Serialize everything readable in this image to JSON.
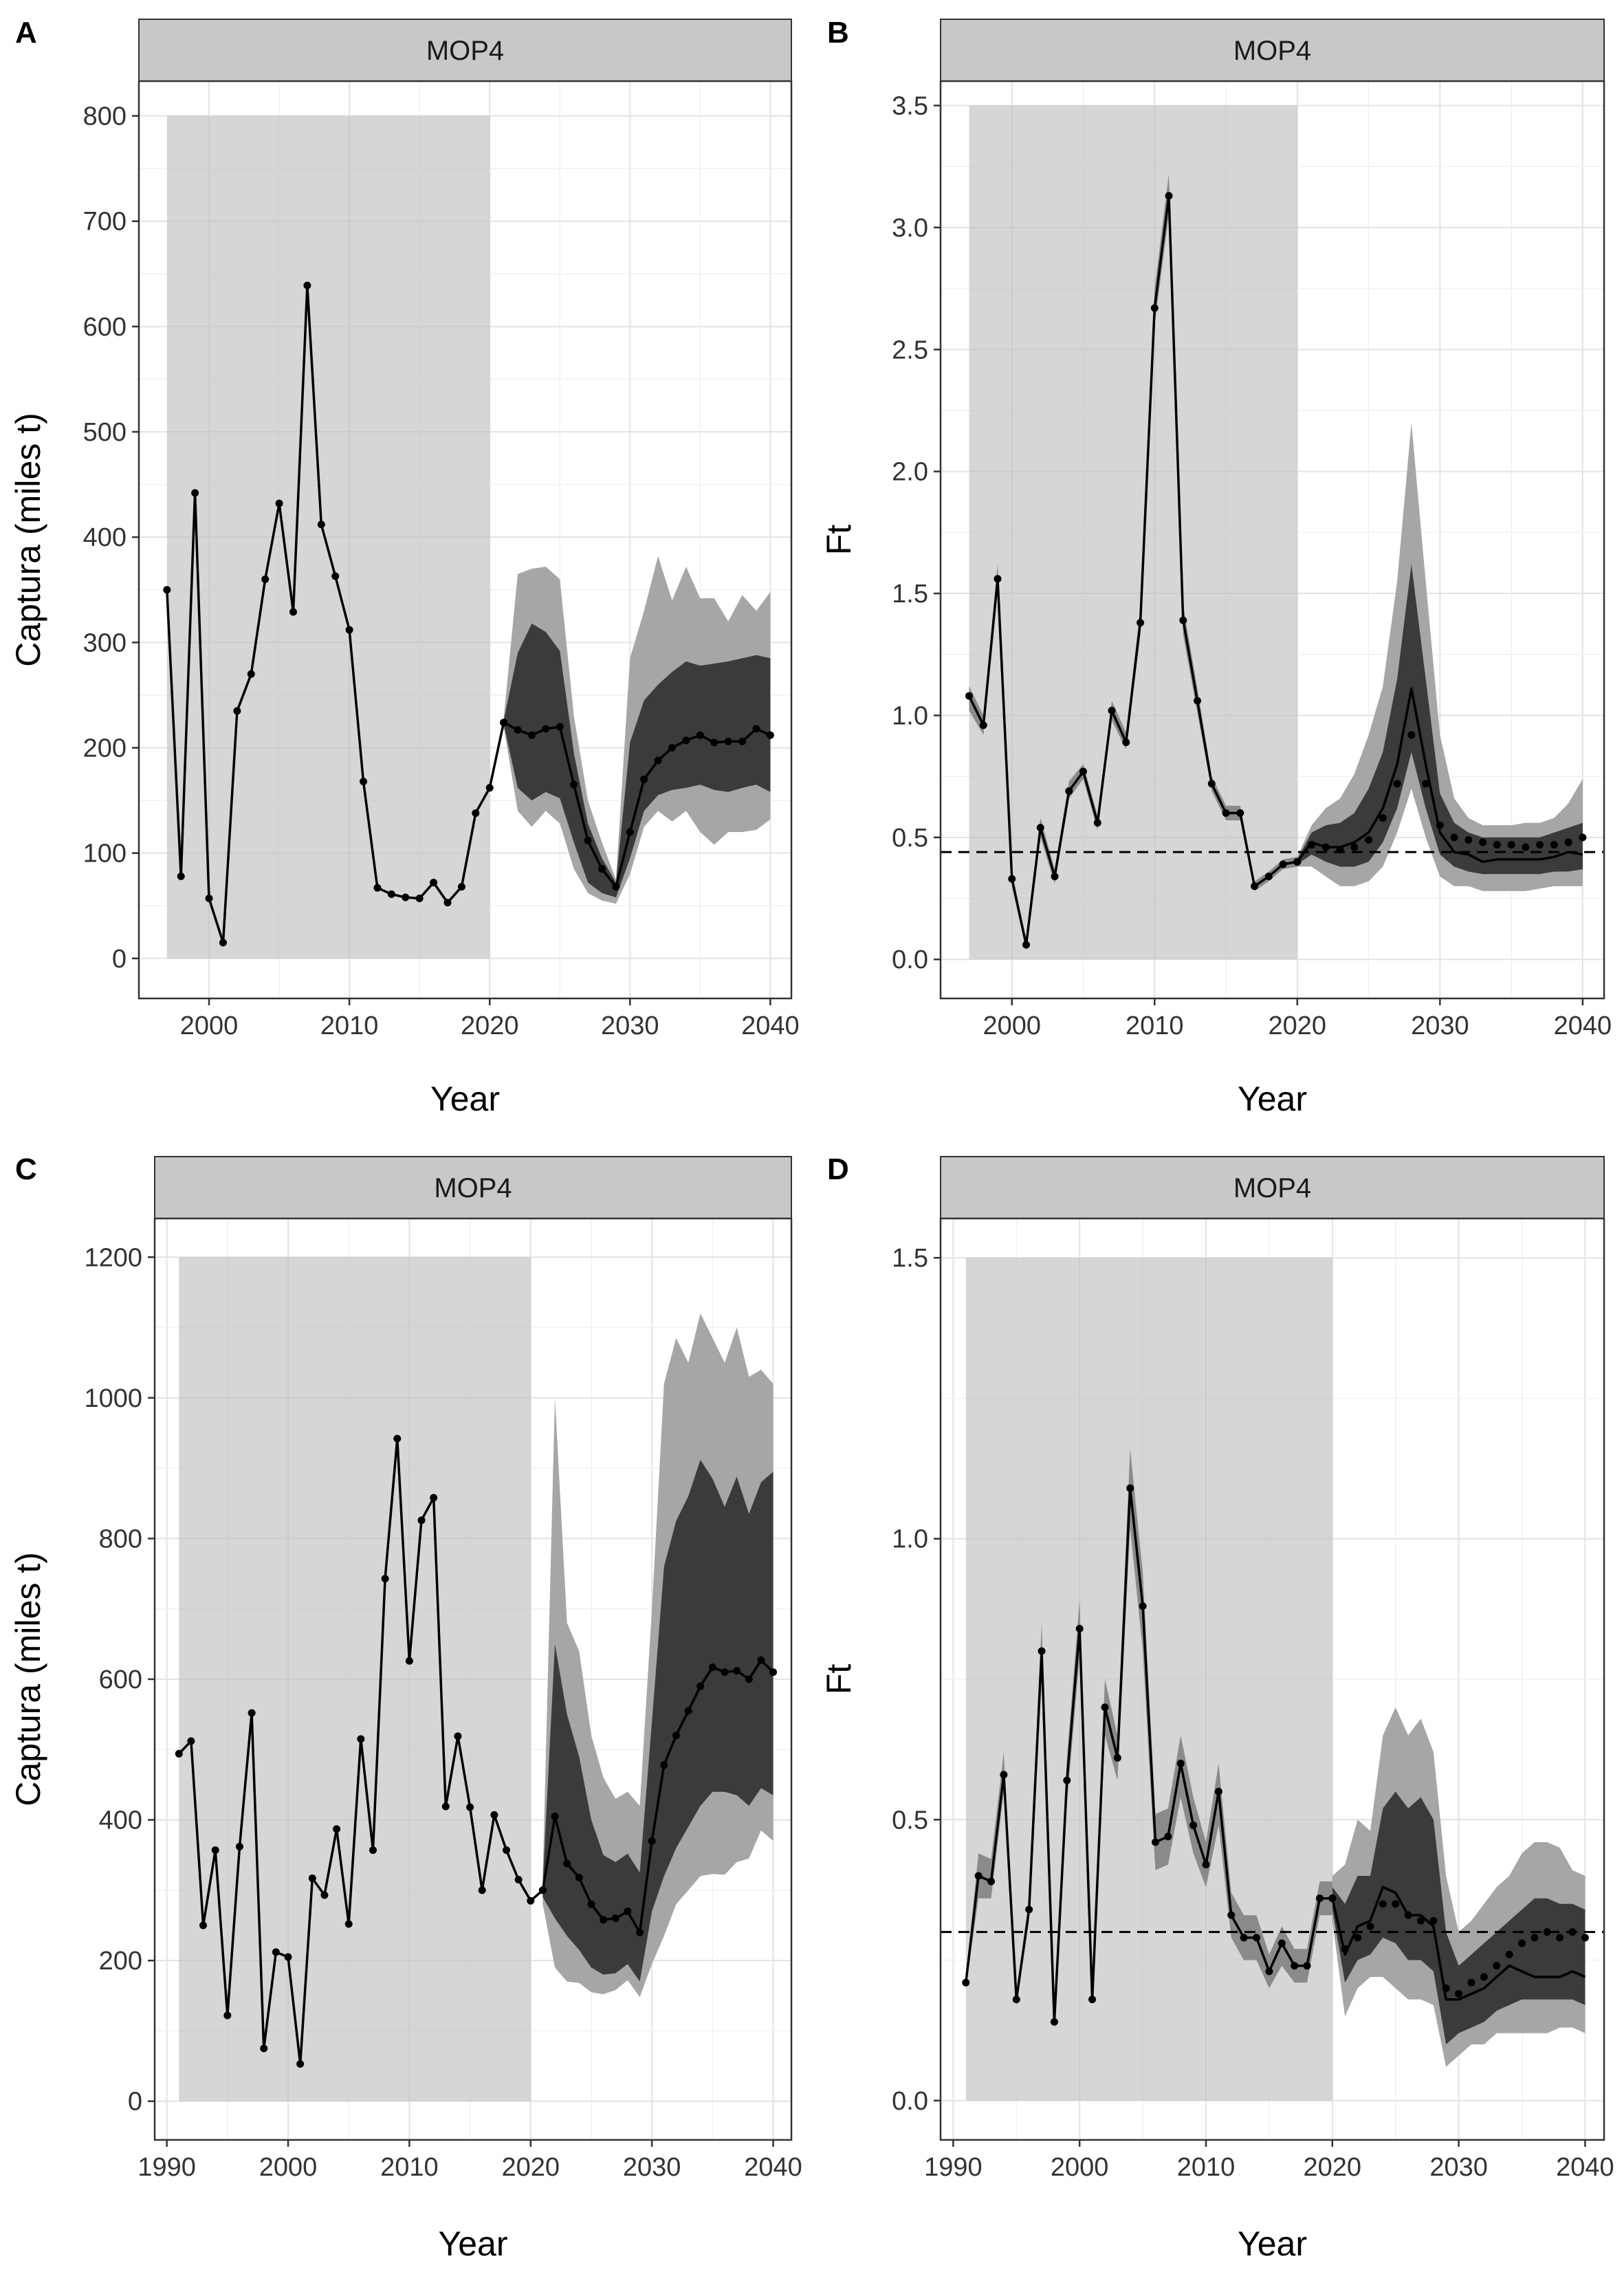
{
  "chart_data": [
    {
      "panel": "A",
      "type": "line",
      "strip": "MOP4",
      "xlabel": "Year",
      "ylabel": "Captura (miles t)",
      "xlim": [
        1995,
        2041.5
      ],
      "ylim": [
        -38,
        833
      ],
      "xticks": [
        2000,
        2010,
        2020,
        2030,
        2040
      ],
      "yticks": [
        0,
        100,
        200,
        300,
        400,
        500,
        600,
        700,
        800
      ],
      "shade": {
        "x": [
          1997,
          2020
        ],
        "y": [
          0,
          800
        ]
      },
      "historic": {
        "x": [
          1997,
          1998,
          1999,
          2000,
          2001,
          2002,
          2003,
          2004,
          2005,
          2006,
          2007,
          2008,
          2009,
          2010,
          2011,
          2012,
          2013,
          2014,
          2015,
          2016,
          2017,
          2018,
          2019,
          2020,
          2021
        ],
        "y": [
          350,
          78,
          442,
          57,
          15,
          235,
          270,
          360,
          432,
          329,
          639,
          412,
          363,
          312,
          168,
          67,
          61,
          58,
          57,
          72,
          53,
          68,
          138,
          162,
          224
        ]
      },
      "projection": {
        "x": [
          2021,
          2022,
          2023,
          2024,
          2025,
          2026,
          2027,
          2028,
          2029,
          2030,
          2031,
          2032,
          2033,
          2034,
          2035,
          2036,
          2037,
          2038,
          2039,
          2040
        ],
        "median": [
          224,
          217,
          212,
          218,
          220,
          165,
          112,
          85,
          68,
          120,
          170,
          188,
          200,
          207,
          212,
          205,
          206,
          206,
          218,
          212
        ],
        "points": [
          224,
          217,
          212,
          218,
          220,
          165,
          112,
          85,
          68,
          120,
          170,
          188,
          200,
          207,
          212,
          205,
          206,
          206,
          218,
          212
        ],
        "outer_lo": [
          220,
          140,
          125,
          140,
          128,
          85,
          62,
          55,
          52,
          80,
          125,
          140,
          130,
          140,
          120,
          108,
          120,
          120,
          122,
          132
        ],
        "outer_hi": [
          228,
          365,
          370,
          372,
          360,
          230,
          150,
          110,
          75,
          285,
          330,
          382,
          340,
          372,
          342,
          342,
          320,
          345,
          330,
          348
        ],
        "inner_lo": [
          222,
          162,
          150,
          158,
          152,
          110,
          72,
          62,
          58,
          95,
          140,
          155,
          160,
          162,
          165,
          160,
          158,
          162,
          165,
          158
        ],
        "inner_hi": [
          226,
          290,
          318,
          310,
          292,
          195,
          128,
          95,
          72,
          205,
          245,
          260,
          272,
          282,
          278,
          280,
          282,
          285,
          288,
          285
        ]
      }
    },
    {
      "panel": "B",
      "type": "line",
      "strip": "MOP4",
      "xlabel": "Year",
      "ylabel": "Ft",
      "xlim": [
        1995,
        2041.5
      ],
      "ylim": [
        -0.16,
        3.6
      ],
      "xticks": [
        2000,
        2010,
        2020,
        2030,
        2040
      ],
      "yticks": [
        0.0,
        0.5,
        1.0,
        1.5,
        2.0,
        2.5,
        3.0,
        3.5
      ],
      "ytick_labels": [
        "0.0",
        "0.5",
        "1.0",
        "1.5",
        "2.0",
        "2.5",
        "3.0",
        "3.5"
      ],
      "shade": {
        "x": [
          1997,
          2020
        ],
        "y": [
          0,
          3.5
        ]
      },
      "reference_line": 0.44,
      "historic": {
        "x": [
          1997,
          1998,
          1999,
          2000,
          2001,
          2002,
          2003,
          2004,
          2005,
          2006,
          2007,
          2008,
          2009,
          2010,
          2011,
          2012,
          2013,
          2014,
          2015,
          2016,
          2017,
          2018,
          2019,
          2020
        ],
        "y": [
          1.08,
          0.96,
          1.56,
          0.33,
          0.06,
          0.54,
          0.34,
          0.69,
          0.77,
          0.56,
          1.02,
          0.89,
          1.38,
          2.67,
          3.13,
          1.39,
          1.06,
          0.72,
          0.6,
          0.6,
          0.3,
          0.34,
          0.39,
          0.4
        ]
      },
      "historic_band": {
        "lo": [
          1.02,
          0.92,
          1.52,
          0.3,
          0.04,
          0.5,
          0.31,
          0.66,
          0.74,
          0.53,
          0.98,
          0.86,
          1.33,
          2.6,
          3.05,
          1.33,
          1.01,
          0.69,
          0.57,
          0.57,
          0.28,
          0.32,
          0.37,
          0.38
        ],
        "hi": [
          1.12,
          1.0,
          1.62,
          0.36,
          0.08,
          0.58,
          0.37,
          0.73,
          0.8,
          0.59,
          1.06,
          0.93,
          1.44,
          2.75,
          3.22,
          1.45,
          1.11,
          0.75,
          0.63,
          0.63,
          0.32,
          0.36,
          0.41,
          0.42
        ]
      },
      "projection": {
        "x": [
          2020,
          2021,
          2022,
          2023,
          2024,
          2025,
          2026,
          2027,
          2028,
          2029,
          2030,
          2031,
          2032,
          2033,
          2034,
          2035,
          2036,
          2037,
          2038,
          2039,
          2040
        ],
        "median": [
          0.4,
          0.48,
          0.46,
          0.46,
          0.48,
          0.52,
          0.62,
          0.8,
          1.11,
          0.8,
          0.52,
          0.44,
          0.43,
          0.4,
          0.41,
          0.41,
          0.41,
          0.41,
          0.42,
          0.44,
          0.43
        ],
        "points": [
          0.4,
          0.47,
          0.46,
          0.45,
          0.46,
          0.49,
          0.58,
          0.72,
          0.92,
          0.72,
          0.55,
          0.5,
          0.49,
          0.48,
          0.47,
          0.47,
          0.46,
          0.47,
          0.47,
          0.48,
          0.5
        ],
        "outer_lo": [
          0.38,
          0.38,
          0.34,
          0.3,
          0.3,
          0.32,
          0.38,
          0.52,
          0.7,
          0.5,
          0.34,
          0.3,
          0.3,
          0.28,
          0.28,
          0.28,
          0.28,
          0.29,
          0.3,
          0.3,
          0.3
        ],
        "outer_hi": [
          0.42,
          0.55,
          0.62,
          0.66,
          0.76,
          0.92,
          1.12,
          1.55,
          2.2,
          1.55,
          0.92,
          0.66,
          0.58,
          0.55,
          0.55,
          0.55,
          0.56,
          0.56,
          0.58,
          0.64,
          0.74
        ],
        "inner_lo": [
          0.39,
          0.43,
          0.4,
          0.38,
          0.38,
          0.4,
          0.48,
          0.62,
          0.85,
          0.62,
          0.43,
          0.38,
          0.36,
          0.35,
          0.35,
          0.35,
          0.35,
          0.35,
          0.36,
          0.36,
          0.37
        ],
        "inner_hi": [
          0.41,
          0.52,
          0.55,
          0.56,
          0.6,
          0.7,
          0.85,
          1.15,
          1.62,
          1.15,
          0.68,
          0.56,
          0.52,
          0.5,
          0.5,
          0.5,
          0.5,
          0.5,
          0.52,
          0.54,
          0.56
        ]
      }
    },
    {
      "panel": "C",
      "type": "line",
      "strip": "MOP4",
      "xlabel": "Year",
      "ylabel": "Captura (miles t)",
      "xlim": [
        1989,
        2041.5
      ],
      "ylim": [
        -55,
        1255
      ],
      "xticks": [
        1990,
        2000,
        2010,
        2020,
        2030,
        2040
      ],
      "yticks": [
        0,
        200,
        400,
        600,
        800,
        1000,
        1200
      ],
      "shade": {
        "x": [
          1991,
          2020
        ],
        "y": [
          0,
          1200
        ]
      },
      "historic": {
        "x": [
          1991,
          1992,
          1993,
          1994,
          1995,
          1996,
          1997,
          1998,
          1999,
          2000,
          2001,
          2002,
          2003,
          2004,
          2005,
          2006,
          2007,
          2008,
          2009,
          2010,
          2011,
          2012,
          2013,
          2014,
          2015,
          2016,
          2017,
          2018,
          2019,
          2020,
          2021
        ],
        "y": [
          494,
          512,
          250,
          357,
          122,
          362,
          552,
          75,
          212,
          205,
          53,
          317,
          293,
          387,
          252,
          515,
          357,
          743,
          942,
          626,
          826,
          858,
          419,
          519,
          418,
          300,
          407,
          357,
          315,
          285,
          300
        ]
      },
      "projection": {
        "x": [
          2021,
          2022,
          2023,
          2024,
          2025,
          2026,
          2027,
          2028,
          2029,
          2030,
          2031,
          2032,
          2033,
          2034,
          2035,
          2036,
          2037,
          2038,
          2039,
          2040
        ],
        "median": [
          300,
          405,
          338,
          318,
          280,
          258,
          260,
          270,
          240,
          370,
          478,
          520,
          555,
          590,
          617,
          610,
          612,
          600,
          627,
          610
        ],
        "points": [
          300,
          405,
          338,
          318,
          280,
          258,
          260,
          270,
          240,
          370,
          478,
          520,
          555,
          590,
          617,
          610,
          612,
          600,
          627,
          610
        ],
        "outer_lo": [
          280,
          190,
          170,
          168,
          155,
          152,
          158,
          172,
          148,
          195,
          235,
          280,
          300,
          320,
          323,
          322,
          340,
          345,
          385,
          370
        ],
        "outer_hi": [
          320,
          1000,
          680,
          640,
          520,
          460,
          430,
          440,
          420,
          700,
          1020,
          1085,
          1050,
          1120,
          1085,
          1050,
          1100,
          1030,
          1040,
          1020
        ],
        "inner_lo": [
          290,
          260,
          235,
          215,
          190,
          180,
          182,
          195,
          170,
          270,
          320,
          360,
          390,
          420,
          440,
          440,
          435,
          420,
          445,
          435
        ],
        "inner_hi": [
          310,
          650,
          550,
          490,
          400,
          350,
          340,
          352,
          325,
          540,
          760,
          825,
          860,
          912,
          885,
          845,
          888,
          835,
          880,
          895
        ]
      }
    },
    {
      "panel": "D",
      "type": "line",
      "strip": "MOP4",
      "xlabel": "Year",
      "ylabel": "Ft",
      "xlim": [
        1989,
        2041.5
      ],
      "ylim": [
        -0.07,
        1.57
      ],
      "xticks": [
        1990,
        2000,
        2010,
        2020,
        2030,
        2040
      ],
      "yticks": [
        0.0,
        0.5,
        1.0,
        1.5
      ],
      "ytick_labels": [
        "0.0",
        "0.5",
        "1.0",
        "1.5"
      ],
      "shade": {
        "x": [
          1991,
          2020
        ],
        "y": [
          0,
          1.5
        ]
      },
      "reference_line": 0.3,
      "historic": {
        "x": [
          1991,
          1992,
          1993,
          1994,
          1995,
          1996,
          1997,
          1998,
          1999,
          2000,
          2001,
          2002,
          2003,
          2004,
          2005,
          2006,
          2007,
          2008,
          2009,
          2010,
          2011,
          2012,
          2013,
          2014,
          2015,
          2016,
          2017,
          2018,
          2019,
          2020
        ],
        "y": [
          0.21,
          0.4,
          0.39,
          0.58,
          0.18,
          0.34,
          0.8,
          0.14,
          0.57,
          0.84,
          0.18,
          0.7,
          0.61,
          1.09,
          0.88,
          0.46,
          0.47,
          0.6,
          0.49,
          0.42,
          0.55,
          0.33,
          0.29,
          0.29,
          0.23,
          0.28,
          0.24,
          0.24,
          0.36,
          0.36
        ]
      },
      "historic_band": {
        "lo": [
          0.2,
          0.36,
          0.36,
          0.55,
          0.17,
          0.32,
          0.75,
          0.13,
          0.53,
          0.79,
          0.17,
          0.65,
          0.57,
          1.02,
          0.8,
          0.41,
          0.42,
          0.54,
          0.44,
          0.38,
          0.49,
          0.29,
          0.25,
          0.25,
          0.2,
          0.24,
          0.21,
          0.21,
          0.33,
          0.33
        ],
        "hi": [
          0.22,
          0.44,
          0.43,
          0.62,
          0.19,
          0.36,
          0.85,
          0.15,
          0.61,
          0.89,
          0.19,
          0.75,
          0.65,
          1.16,
          0.94,
          0.51,
          0.52,
          0.65,
          0.54,
          0.46,
          0.6,
          0.37,
          0.33,
          0.33,
          0.26,
          0.31,
          0.27,
          0.27,
          0.39,
          0.39
        ]
      },
      "projection": {
        "x": [
          2020,
          2021,
          2022,
          2023,
          2024,
          2025,
          2026,
          2027,
          2028,
          2029,
          2030,
          2031,
          2032,
          2033,
          2034,
          2035,
          2036,
          2037,
          2038,
          2039,
          2040
        ],
        "median": [
          0.36,
          0.26,
          0.31,
          0.32,
          0.38,
          0.37,
          0.33,
          0.33,
          0.31,
          0.18,
          0.18,
          0.19,
          0.2,
          0.22,
          0.24,
          0.23,
          0.22,
          0.22,
          0.22,
          0.23,
          0.22
        ],
        "points": [
          0.36,
          0.27,
          0.29,
          0.31,
          0.35,
          0.35,
          0.33,
          0.32,
          0.32,
          0.2,
          0.19,
          0.21,
          0.22,
          0.24,
          0.26,
          0.28,
          0.29,
          0.3,
          0.29,
          0.3,
          0.29
        ],
        "outer_lo": [
          0.32,
          0.15,
          0.2,
          0.22,
          0.22,
          0.2,
          0.18,
          0.18,
          0.17,
          0.06,
          0.08,
          0.1,
          0.1,
          0.12,
          0.12,
          0.12,
          0.12,
          0.12,
          0.13,
          0.13,
          0.12
        ],
        "outer_hi": [
          0.4,
          0.42,
          0.5,
          0.48,
          0.65,
          0.7,
          0.65,
          0.68,
          0.62,
          0.4,
          0.3,
          0.32,
          0.35,
          0.38,
          0.4,
          0.44,
          0.46,
          0.46,
          0.45,
          0.41,
          0.4
        ],
        "inner_lo": [
          0.34,
          0.21,
          0.25,
          0.26,
          0.29,
          0.28,
          0.25,
          0.25,
          0.23,
          0.1,
          0.12,
          0.13,
          0.14,
          0.16,
          0.17,
          0.18,
          0.18,
          0.18,
          0.18,
          0.18,
          0.17
        ],
        "inner_hi": [
          0.38,
          0.35,
          0.4,
          0.4,
          0.52,
          0.55,
          0.52,
          0.54,
          0.5,
          0.3,
          0.24,
          0.26,
          0.28,
          0.3,
          0.32,
          0.34,
          0.36,
          0.36,
          0.35,
          0.35,
          0.34
        ]
      }
    }
  ]
}
